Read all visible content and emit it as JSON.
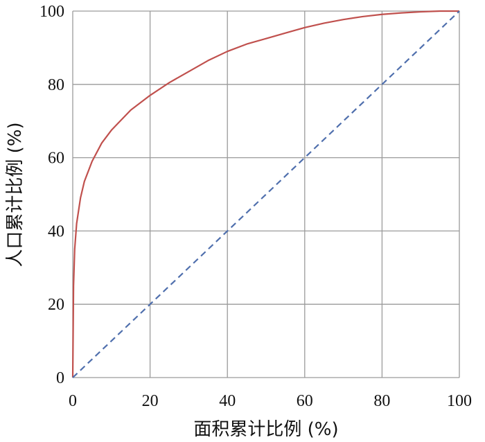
{
  "chart_data": {
    "type": "line",
    "xlabel": "面积累计比例 (%)",
    "ylabel": "人口累计比例 (%)",
    "xlim": [
      0,
      100
    ],
    "ylim": [
      0,
      100
    ],
    "xticks": [
      0,
      20,
      40,
      60,
      80,
      100
    ],
    "yticks": [
      0,
      20,
      40,
      60,
      80,
      100
    ],
    "grid": true,
    "series": [
      {
        "color": "#c0504d",
        "style": "solid",
        "x": [
          0,
          0.2,
          0.5,
          1,
          2,
          3,
          5,
          7.5,
          10,
          15,
          20,
          25,
          30,
          35,
          40,
          45,
          50,
          55,
          60,
          65,
          70,
          75,
          80,
          85,
          90,
          95,
          100
        ],
        "y": [
          0,
          25,
          35,
          42,
          49,
          53.5,
          59,
          64,
          67.5,
          73,
          77,
          80.5,
          83.5,
          86.5,
          89,
          91,
          92.5,
          94,
          95.5,
          96.7,
          97.7,
          98.5,
          99.1,
          99.5,
          99.8,
          100,
          100
        ]
      },
      {
        "color": "#4f6fad",
        "style": "dashed",
        "x": [
          0,
          100
        ],
        "y": [
          0,
          100
        ]
      }
    ]
  }
}
